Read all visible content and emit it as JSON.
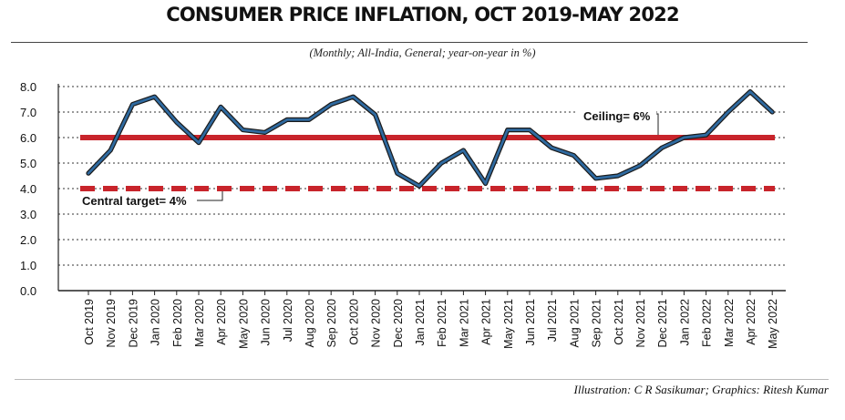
{
  "header": {
    "title": "CONSUMER PRICE INFLATION, OCT 2019-MAY 2022",
    "subtitle": "(Monthly; All-India, General; year-on-year in %)"
  },
  "footer": {
    "credit": "Illustration: C R Sasikumar; Graphics: Ritesh Kumar"
  },
  "colors": {
    "line": "#2f6aa0",
    "line_outline": "#1a1a1a",
    "ceiling": "#c8242b",
    "target": "#c8242b",
    "grid": "#333333"
  },
  "chart_data": {
    "type": "line",
    "title": "CONSUMER PRICE INFLATION, OCT 2019-MAY 2022",
    "subtitle": "(Monthly; All-India, General; year-on-year in %)",
    "xlabel": "",
    "ylabel": "",
    "ylim": [
      0,
      8
    ],
    "yticks": [
      "0.0",
      "1.0",
      "2.0",
      "3.0",
      "4.0",
      "5.0",
      "6.0",
      "7.0",
      "8.0"
    ],
    "grid": "horizontal dotted",
    "categories": [
      "Oct 2019",
      "Nov 2019",
      "Dec 2019",
      "Jan 2020",
      "Feb 2020",
      "Mar 2020",
      "Apr 2020",
      "May 2020",
      "Jun 2020",
      "Jul 2020",
      "Aug 2020",
      "Sep 2020",
      "Oct 2020",
      "Nov 2020",
      "Dec 2020",
      "Jan 2021",
      "Feb 2021",
      "Mar 2021",
      "Apr 2021",
      "May 2021",
      "Jun 2021",
      "Jul 2021",
      "Aug 2021",
      "Sep 2021",
      "Oct 2021",
      "Nov 2021",
      "Dec 2021",
      "Jan 2022",
      "Feb 2022",
      "Mar 2022",
      "Apr 2022",
      "May 2022"
    ],
    "series": [
      {
        "values": [
          4.6,
          5.5,
          7.3,
          7.6,
          6.6,
          5.8,
          7.2,
          6.3,
          6.2,
          6.7,
          6.7,
          7.3,
          7.6,
          6.9,
          4.6,
          4.1,
          5.0,
          5.5,
          4.2,
          6.3,
          6.3,
          5.6,
          5.3,
          4.4,
          4.5,
          4.9,
          5.6,
          6.0,
          6.1,
          7.0,
          7.8,
          7.0
        ]
      }
    ],
    "reference_lines": [
      {
        "label": "Ceiling= 6%",
        "value": 6.0,
        "style": "solid"
      },
      {
        "label": "Central target= 4%",
        "value": 4.0,
        "style": "dashed"
      }
    ]
  }
}
